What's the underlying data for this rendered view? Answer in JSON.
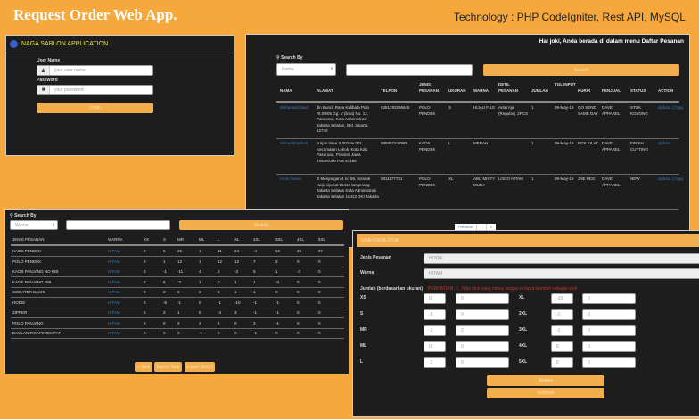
{
  "header": {
    "title": "Request Order Web App.",
    "tech": "Technology : PHP CodeIgniter, Rest API, MySQL"
  },
  "colors": {
    "background": "#f6a83c",
    "panel": "#1d1d1d",
    "accent": "#f2ad4c",
    "link": "#3a7fc1",
    "warning": "#c0392b"
  },
  "login": {
    "app_title": "NAGA SABLON APPLICATION",
    "user_label": "User Name",
    "user_placeholder": "your user name",
    "pass_label": "Password",
    "pass_placeholder": "your password",
    "login_label": "Login",
    "icons": [
      "user-icon",
      "lock-icon"
    ]
  },
  "orders": {
    "greeting": "Hai joki, Anda berada di dalam menu Daftar Pesanan",
    "search_by": "Search By",
    "select_value": "Nama",
    "search_label": "Search",
    "columns": [
      "NAMA",
      "ALAMAT",
      "TELPON",
      "JENIS PESANAN",
      "UKURAN",
      "WARNA",
      "DETIL PESANAN",
      "JUMLAH",
      "TGL INPUT",
      "KURIR",
      "PENJUAL",
      "STATUS",
      "ACTION"
    ],
    "rows": [
      [
        "Mohamad Daud",
        "Jln Buncit Raya Kalibata Pulo Rt.09/05 Gg. V (lima) No. 12, Pancoran, Kota Administrasi Jakarta Selatan, DKI Jakarta, 12740",
        "6281283386645",
        "POLO PENDEK",
        "S",
        "HIJAU FUJI",
        "AnterAja (Regular), 2PCS",
        "1",
        "09-May-19",
        "GO SEND SAME DAY",
        "DAVE APPAREL",
        "STOK KOSONG",
        "Upload | Copy"
      ],
      [
        "ahmadi(madun)",
        "krajan timur rt 002 rw 001, Kecamatan Lekok, Kota Kab. Pasuruan, Provinsi Jawa TimurKode Pos 67186",
        "085852242989",
        "KAOS PENDEK",
        "L",
        "MERAH",
        "",
        "1",
        "09-May-19",
        "POS KILAT",
        "DAVE APPAREL",
        "FINISH CUTTING",
        "Upload"
      ],
      [
        "Amin hamid",
        "Jl Menjangan 4 no 86, pondok ranji, ciputat 15412 tangerang Jakarta Selatan Kota Administrasi Jakarta Selatan 15412 DKI Jakarta",
        "0811177731",
        "POLO PENDEK",
        "XL",
        "ABU MISTY MUDA",
        "LOGO HITAM",
        "1",
        "09-May-19",
        "JNE REG",
        "DAVE APPAREL",
        "NEW",
        "Upload | Copy"
      ]
    ],
    "pagination": [
      "Previous",
      "1",
      "2"
    ]
  },
  "stock": {
    "search_by": "Search By",
    "select_value": "Warna",
    "search_label": "Search",
    "columns": [
      "JENIS PESANAN",
      "WARNA",
      "XS",
      "S",
      "MR",
      "ML",
      "L",
      "XL",
      "2XL",
      "3XL",
      "4XL",
      "5XL"
    ],
    "rows": [
      [
        "KAOS PENDEK",
        "HITAM",
        "0",
        "5",
        "25",
        "1",
        "11",
        "24",
        "-4",
        "56",
        "29",
        "97"
      ],
      [
        "POLO PENDEK",
        "HITAM",
        "0",
        "1",
        "12",
        "1",
        "12",
        "12",
        "7",
        "3",
        "0",
        "0"
      ],
      [
        "KAOS PANJANG NO RIB",
        "HITAM",
        "0",
        "-1",
        "-11",
        "4",
        "2",
        "-3",
        "5",
        "1",
        "-3",
        "0"
      ],
      [
        "KAOS PANJANG RIB",
        "HITAM",
        "0",
        "6",
        "-3",
        "1",
        "0",
        "1",
        "1",
        "-3",
        "0",
        "0"
      ],
      [
        "SWEATER BASIC",
        "HITAM",
        "0",
        "0",
        "2",
        "0",
        "2",
        "1",
        "1",
        "0",
        "0",
        "0"
      ],
      [
        "HODIE",
        "HITAM",
        "0",
        "-5",
        "-1",
        "0",
        "-1",
        "-10",
        "-1",
        "-1",
        "0",
        "0"
      ],
      [
        "ZIPPER",
        "HITAM",
        "0",
        "2",
        "1",
        "0",
        "-4",
        "3",
        "-1",
        "-1",
        "0",
        "0"
      ],
      [
        "POLO PANJANG",
        "HITAM",
        "0",
        "0",
        "2",
        "2",
        "4",
        "0",
        "3",
        "-1",
        "0",
        "0"
      ],
      [
        "BAGLAN TIGAPEREMPAT",
        "HITAM",
        "0",
        "0",
        "0",
        "-1",
        "0",
        "0",
        "-1",
        "0",
        "0",
        "0"
      ]
    ],
    "buttons": [
      "+ Stok",
      "Export Stok",
      "Export Stok 2"
    ]
  },
  "edit": {
    "header": "UBAH DATA STOK",
    "jenis_label": "Jenis Pesanan",
    "jenis_value": "HODIE",
    "warna_label": "Warna",
    "warna_value": "HITAM",
    "jumlah_label": "Jumlah (berdasarkan ukuran)",
    "warning": "PERHATIAN..!!.. Nilai stok yang minus jangan di input kembali sebagai stok",
    "left": [
      [
        "XS",
        "0",
        "0"
      ],
      [
        "S",
        "-5",
        "0"
      ],
      [
        "MR",
        "-1",
        "2"
      ],
      [
        "ML",
        "0",
        "0"
      ],
      [
        "L",
        "-1",
        "0"
      ]
    ],
    "right": [
      [
        "XL",
        "-10",
        "0"
      ],
      [
        "2XL",
        "-1",
        "0"
      ],
      [
        "3XL",
        "-1",
        "0"
      ],
      [
        "4XL",
        "0",
        "0"
      ],
      [
        "5XL",
        "0",
        "0"
      ]
    ],
    "save_label": "Simpan",
    "back_label": "Kembali"
  }
}
